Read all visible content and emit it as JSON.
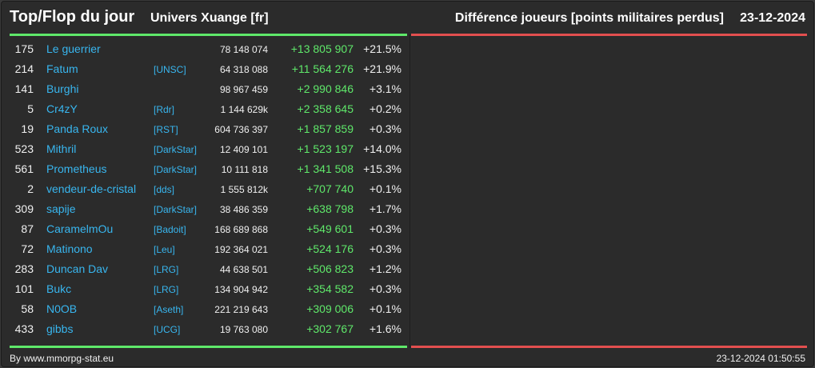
{
  "header": {
    "title": "Top/Flop du jour",
    "universe": "Univers Xuange [fr]",
    "metric": "Différence joueurs [points militaires perdus]",
    "date": "23-12-2024"
  },
  "colors": {
    "positive": "#5fe86a",
    "negative": "#e24f4f",
    "player_link": "#38b6ef",
    "background": "#2b2b2b"
  },
  "top_rows": [
    {
      "rank": "175",
      "name": "Le guerrier",
      "alliance": "",
      "points": "78 148 074",
      "diff": "+13 805 907",
      "pct": "+21.5%"
    },
    {
      "rank": "214",
      "name": "Fatum",
      "alliance": "[UNSC]",
      "points": "64 318 088",
      "diff": "+11 564 276",
      "pct": "+21.9%"
    },
    {
      "rank": "141",
      "name": "Burghi",
      "alliance": "",
      "points": "98 967 459",
      "diff": "+2 990 846",
      "pct": "+3.1%"
    },
    {
      "rank": "5",
      "name": "Cr4zY",
      "alliance": "[Rdr]",
      "points": "1 144 629k",
      "diff": "+2 358 645",
      "pct": "+0.2%"
    },
    {
      "rank": "19",
      "name": "Panda Roux",
      "alliance": "[RST]",
      "points": "604 736 397",
      "diff": "+1 857 859",
      "pct": "+0.3%"
    },
    {
      "rank": "523",
      "name": "Mithril",
      "alliance": "[DarkStar]",
      "points": "12 409 101",
      "diff": "+1 523 197",
      "pct": "+14.0%"
    },
    {
      "rank": "561",
      "name": "Prometheus",
      "alliance": "[DarkStar]",
      "points": "10 111 818",
      "diff": "+1 341 508",
      "pct": "+15.3%"
    },
    {
      "rank": "2",
      "name": "vendeur-de-cristal",
      "alliance": "[dds]",
      "points": "1 555 812k",
      "diff": "+707 740",
      "pct": "+0.1%"
    },
    {
      "rank": "309",
      "name": "sapije",
      "alliance": "[DarkStar]",
      "points": "38 486 359",
      "diff": "+638 798",
      "pct": "+1.7%"
    },
    {
      "rank": "87",
      "name": "CaramelmOu",
      "alliance": "[Badoit]",
      "points": "168 689 868",
      "diff": "+549 601",
      "pct": "+0.3%"
    },
    {
      "rank": "72",
      "name": "Matinono",
      "alliance": "[Leu]",
      "points": "192 364 021",
      "diff": "+524 176",
      "pct": "+0.3%"
    },
    {
      "rank": "283",
      "name": "Duncan Dav",
      "alliance": "[LRG]",
      "points": "44 638 501",
      "diff": "+506 823",
      "pct": "+1.2%"
    },
    {
      "rank": "101",
      "name": "Bukc",
      "alliance": "[LRG]",
      "points": "134 904 942",
      "diff": "+354 582",
      "pct": "+0.3%"
    },
    {
      "rank": "58",
      "name": "N0OB",
      "alliance": "[Aseth]",
      "points": "221 219 643",
      "diff": "+309 006",
      "pct": "+0.1%"
    },
    {
      "rank": "433",
      "name": "gibbs",
      "alliance": "[UCG]",
      "points": "19 763 080",
      "diff": "+302 767",
      "pct": "+1.6%"
    }
  ],
  "footer": {
    "source": "By www.mmorpg-stat.eu",
    "timestamp": "23-12-2024 01:50:55"
  }
}
